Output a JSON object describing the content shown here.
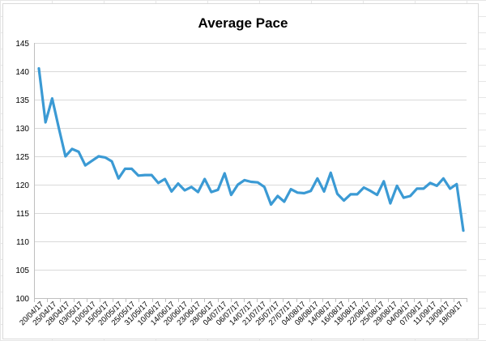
{
  "chart_data": {
    "type": "line",
    "title": "Average Pace",
    "xlabel": "",
    "ylabel": "",
    "ylim": [
      100,
      145
    ],
    "yticks": [
      100,
      105,
      110,
      115,
      120,
      125,
      130,
      135,
      140,
      145
    ],
    "grid": true,
    "legend": "none",
    "x_tick_labels": [
      "20/04/17",
      "25/04/17",
      "28/04/17",
      "03/05/17",
      "10/05/17",
      "15/05/17",
      "20/05/17",
      "25/05/17",
      "31/05/17",
      "10/06/17",
      "14/06/17",
      "20/06/17",
      "23/06/17",
      "28/06/17",
      "04/07/17",
      "06/07/17",
      "14/07/17",
      "21/07/17",
      "25/07/17",
      "27/07/17",
      "04/08/17",
      "08/08/17",
      "14/08/17",
      "16/08/17",
      "18/08/17",
      "22/08/17",
      "25/08/17",
      "29/08/17",
      "04/09/17",
      "07/09/17",
      "11/09/17",
      "13/09/17",
      "18/09/17"
    ],
    "series": [
      {
        "color": "#3b9ad4",
        "values": [
          140.5,
          131,
          135.2,
          130,
          125,
          126.3,
          125.8,
          123.4,
          124.2,
          125,
          124.8,
          124.1,
          121.1,
          122.8,
          122.8,
          121.6,
          121.7,
          121.7,
          120.3,
          121,
          118.8,
          120.2,
          119,
          119.6,
          118.7,
          121,
          118.7,
          119.1,
          122,
          118.2,
          120,
          120.8,
          120.5,
          120.4,
          119.6,
          116.5,
          118,
          117,
          119.2,
          118.6,
          118.5,
          118.9,
          121.1,
          118.8,
          122.1,
          118.4,
          117.2,
          118.3,
          118.3,
          119.5,
          118.9,
          118.2,
          120.6,
          116.7,
          119.8,
          117.7,
          118,
          119.3,
          119.3,
          120.3,
          119.8,
          121.1,
          119.3,
          120.1,
          111.9
        ]
      }
    ]
  }
}
